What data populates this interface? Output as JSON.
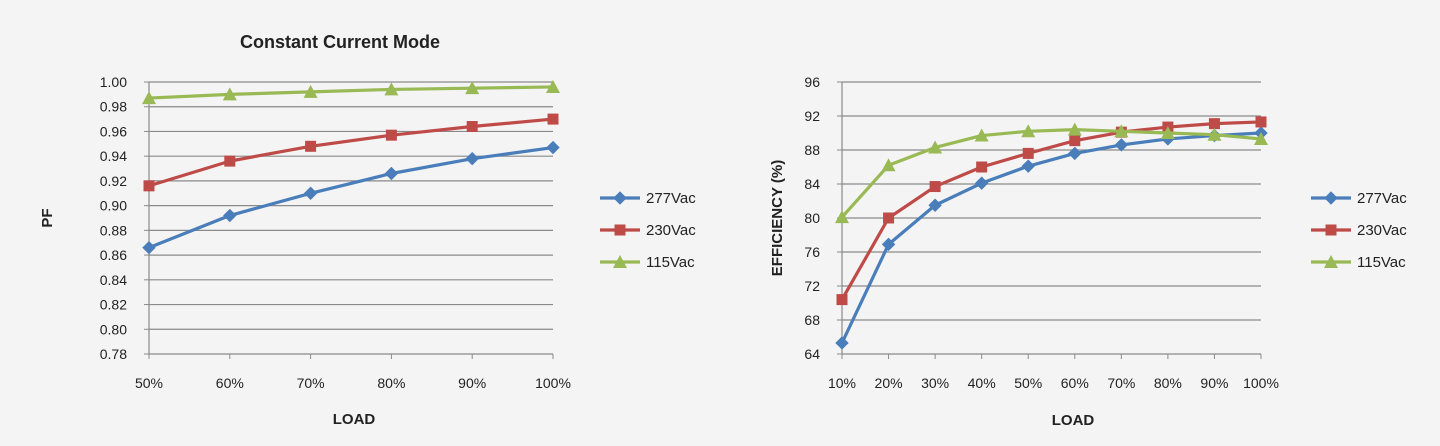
{
  "chart_data": [
    {
      "type": "line",
      "title": "Constant Current Mode",
      "xlabel": "LOAD",
      "ylabel": "PF",
      "categories": [
        "50%",
        "60%",
        "70%",
        "80%",
        "90%",
        "100%"
      ],
      "ylim": [
        0.78,
        1.0
      ],
      "yticks": [
        "0.78",
        "0.80",
        "0.82",
        "0.84",
        "0.86",
        "0.88",
        "0.90",
        "0.92",
        "0.94",
        "0.96",
        "0.98",
        "1.00"
      ],
      "grid": true,
      "legend": "right",
      "series": [
        {
          "name": "277Vac",
          "color": "#4a7ebb",
          "marker": "diamond",
          "values": [
            0.866,
            0.892,
            0.91,
            0.926,
            0.938,
            0.947
          ]
        },
        {
          "name": "230Vac",
          "color": "#be4b48",
          "marker": "square",
          "values": [
            0.916,
            0.936,
            0.948,
            0.957,
            0.964,
            0.97
          ]
        },
        {
          "name": "115Vac",
          "color": "#98b954",
          "marker": "triangle",
          "values": [
            0.987,
            0.99,
            0.992,
            0.994,
            0.995,
            0.996
          ]
        }
      ]
    },
    {
      "type": "line",
      "title": "",
      "xlabel": "LOAD",
      "ylabel": "EFFICIENCY (%)",
      "categories": [
        "10%",
        "20%",
        "30%",
        "40%",
        "50%",
        "60%",
        "70%",
        "80%",
        "90%",
        "100%"
      ],
      "ylim": [
        64,
        96
      ],
      "yticks": [
        "64",
        "68",
        "72",
        "76",
        "80",
        "84",
        "88",
        "92",
        "96"
      ],
      "grid": true,
      "legend": "right",
      "series": [
        {
          "name": "277Vac",
          "color": "#4a7ebb",
          "marker": "diamond",
          "values": [
            65.3,
            76.9,
            81.5,
            84.1,
            86.1,
            87.6,
            88.6,
            89.3,
            89.7,
            90.0
          ]
        },
        {
          "name": "230Vac",
          "color": "#be4b48",
          "marker": "square",
          "values": [
            70.4,
            80.0,
            83.7,
            86.0,
            87.6,
            89.1,
            90.1,
            90.7,
            91.1,
            91.3
          ]
        },
        {
          "name": "115Vac",
          "color": "#98b954",
          "marker": "triangle",
          "values": [
            80.1,
            86.2,
            88.3,
            89.7,
            90.2,
            90.4,
            90.2,
            90.0,
            89.8,
            89.3
          ]
        }
      ]
    }
  ]
}
